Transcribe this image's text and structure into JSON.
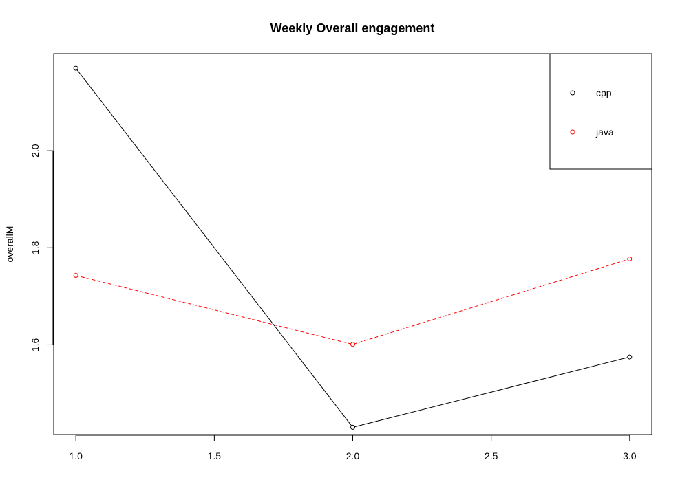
{
  "chart_data": {
    "type": "line",
    "title": "Weekly Overall engagement",
    "xlabel": "",
    "ylabel": "overallM",
    "x": [
      1.0,
      2.0,
      3.0
    ],
    "series": [
      {
        "name": "cpp",
        "values": [
          2.17,
          1.43,
          1.575
        ],
        "color": "#000000",
        "linestyle": "solid"
      },
      {
        "name": "java",
        "values": [
          1.743,
          1.601,
          1.777
        ],
        "color": "#ff0000",
        "linestyle": "dashed"
      }
    ],
    "xlim": [
      0.92,
      3.08
    ],
    "ylim": [
      1.415,
      2.2
    ],
    "xticks": [
      1.0,
      1.5,
      2.0,
      2.5,
      3.0
    ],
    "xtick_labels": [
      "1.0",
      "1.5",
      "2.0",
      "2.5",
      "3.0"
    ],
    "yticks": [
      1.6,
      1.8,
      2.0
    ],
    "ytick_labels": [
      "1.6",
      "1.8",
      "2.0"
    ],
    "grid": false,
    "legend_position": "top-right"
  }
}
